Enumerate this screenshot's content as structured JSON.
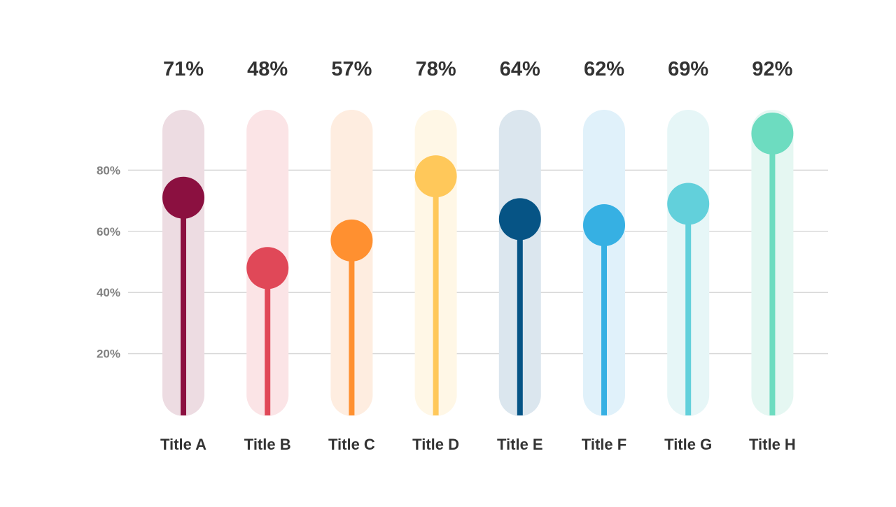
{
  "chart_data": {
    "type": "bar",
    "subtype": "lollipop",
    "title": "",
    "xlabel": "",
    "ylabel": "",
    "ylim": [
      0,
      100
    ],
    "y_ticks": [
      {
        "value": 20,
        "label": "20%"
      },
      {
        "value": 40,
        "label": "40%"
      },
      {
        "value": 60,
        "label": "60%"
      },
      {
        "value": 80,
        "label": "80%"
      }
    ],
    "grid": true,
    "legend": "none",
    "categories": [
      "Title A",
      "Title B",
      "Title C",
      "Title D",
      "Title E",
      "Title F",
      "Title G",
      "Title H"
    ],
    "values": [
      71,
      48,
      57,
      78,
      64,
      62,
      69,
      92
    ],
    "value_labels": [
      "71%",
      "48%",
      "57%",
      "78%",
      "64%",
      "62%",
      "69%",
      "92%"
    ],
    "colors": [
      "#8B1040",
      "#E04858",
      "#FF9030",
      "#FFC85A",
      "#065485",
      "#36B0E3",
      "#62D0DB",
      "#6DDCC0"
    ],
    "track_colors": [
      "#EDDCE2",
      "#FBE4E6",
      "#FEEDE0",
      "#FFF7E6",
      "#DBE6EE",
      "#E0F1FA",
      "#E6F6F7",
      "#E5F7F2"
    ]
  }
}
